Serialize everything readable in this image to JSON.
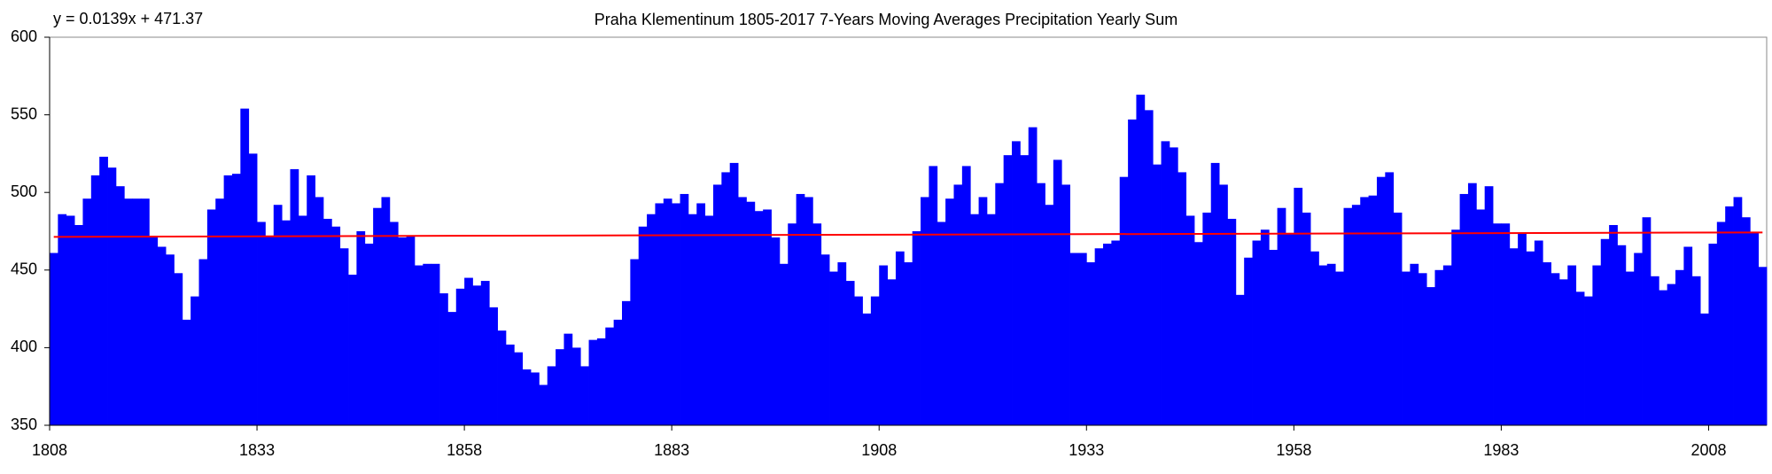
{
  "chart_data": {
    "type": "bar",
    "title": "Praha Klementinum 1805-2017 7-Years Moving Averages Precipitation Yearly Sum",
    "annotation": "y = 0.0139x + 471.37",
    "trendline": {
      "slope": 0.0139,
      "intercept": 471.37,
      "color": "#ff0000"
    },
    "color": "#0000ff",
    "x": [
      1808,
      1809,
      1810,
      1811,
      1812,
      1813,
      1814,
      1815,
      1816,
      1817,
      1818,
      1819,
      1820,
      1821,
      1822,
      1823,
      1824,
      1825,
      1826,
      1827,
      1828,
      1829,
      1830,
      1831,
      1832,
      1833,
      1834,
      1835,
      1836,
      1837,
      1838,
      1839,
      1840,
      1841,
      1842,
      1843,
      1844,
      1845,
      1846,
      1847,
      1848,
      1849,
      1850,
      1851,
      1852,
      1853,
      1854,
      1855,
      1856,
      1857,
      1858,
      1859,
      1860,
      1861,
      1862,
      1863,
      1864,
      1865,
      1866,
      1867,
      1868,
      1869,
      1870,
      1871,
      1872,
      1873,
      1874,
      1875,
      1876,
      1877,
      1878,
      1879,
      1880,
      1881,
      1882,
      1883,
      1884,
      1885,
      1886,
      1887,
      1888,
      1889,
      1890,
      1891,
      1892,
      1893,
      1894,
      1895,
      1896,
      1897,
      1898,
      1899,
      1900,
      1901,
      1902,
      1903,
      1904,
      1905,
      1906,
      1907,
      1908,
      1909,
      1910,
      1911,
      1912,
      1913,
      1914,
      1915,
      1916,
      1917,
      1918,
      1919,
      1920,
      1921,
      1922,
      1923,
      1924,
      1925,
      1926,
      1927,
      1928,
      1929,
      1930,
      1931,
      1932,
      1933,
      1934,
      1935,
      1936,
      1937,
      1938,
      1939,
      1940,
      1941,
      1942,
      1943,
      1944,
      1945,
      1946,
      1947,
      1948,
      1949,
      1950,
      1951,
      1952,
      1953,
      1954,
      1955,
      1956,
      1957,
      1958,
      1959,
      1960,
      1961,
      1962,
      1963,
      1964,
      1965,
      1966,
      1967,
      1968,
      1969,
      1970,
      1971,
      1972,
      1973,
      1974,
      1975,
      1976,
      1977,
      1978,
      1979,
      1980,
      1981,
      1982,
      1983,
      1984,
      1985,
      1986,
      1987,
      1988,
      1989,
      1990,
      1991,
      1992,
      1993,
      1994,
      1995,
      1996,
      1997,
      1998,
      1999,
      2000,
      2001,
      2002,
      2003,
      2004,
      2005,
      2006,
      2007,
      2008,
      2009,
      2010,
      2011,
      2012,
      2013,
      2014
    ],
    "values": [
      461,
      486,
      485,
      479,
      496,
      511,
      523,
      516,
      504,
      496,
      496,
      496,
      472,
      465,
      460,
      448,
      418,
      433,
      457,
      489,
      496,
      511,
      512,
      554,
      525,
      481,
      472,
      492,
      482,
      515,
      485,
      511,
      497,
      483,
      478,
      464,
      447,
      475,
      467,
      490,
      497,
      481,
      471,
      472,
      453,
      454,
      454,
      435,
      423,
      438,
      445,
      440,
      443,
      426,
      411,
      402,
      397,
      386,
      384,
      376,
      388,
      399,
      409,
      400,
      388,
      405,
      406,
      413,
      418,
      430,
      457,
      478,
      486,
      493,
      496,
      493,
      499,
      486,
      493,
      485,
      505,
      513,
      519,
      497,
      494,
      488,
      489,
      471,
      454,
      480,
      499,
      497,
      480,
      460,
      449,
      455,
      443,
      433,
      422,
      433,
      453,
      444,
      462,
      455,
      475,
      497,
      517,
      481,
      496,
      505,
      517,
      486,
      497,
      486,
      506,
      524,
      533,
      524,
      542,
      506,
      492,
      521,
      505,
      461,
      461,
      455,
      464,
      467,
      469,
      510,
      547,
      563,
      553,
      518,
      533,
      529,
      513,
      485,
      468,
      487,
      519,
      505,
      483,
      434,
      458,
      469,
      476,
      463,
      490,
      473,
      503,
      487,
      462,
      453,
      454,
      449,
      490,
      492,
      497,
      498,
      510,
      513,
      487,
      449,
      454,
      448,
      439,
      450,
      453,
      476,
      499,
      506,
      489,
      504,
      480,
      480,
      464,
      474,
      462,
      469,
      455,
      448,
      444,
      453,
      436,
      433,
      453,
      470,
      479,
      466,
      449,
      461,
      484,
      446,
      437,
      441,
      450,
      465,
      446,
      422,
      467,
      481,
      491,
      497,
      484,
      474,
      452
    ],
    "xlim": [
      1808,
      2015
    ],
    "xticks": [
      1808,
      1833,
      1858,
      1883,
      1908,
      1933,
      1958,
      1983,
      2008
    ],
    "ylim": [
      350,
      600
    ],
    "yticks": [
      350,
      400,
      450,
      500,
      550,
      600
    ]
  }
}
